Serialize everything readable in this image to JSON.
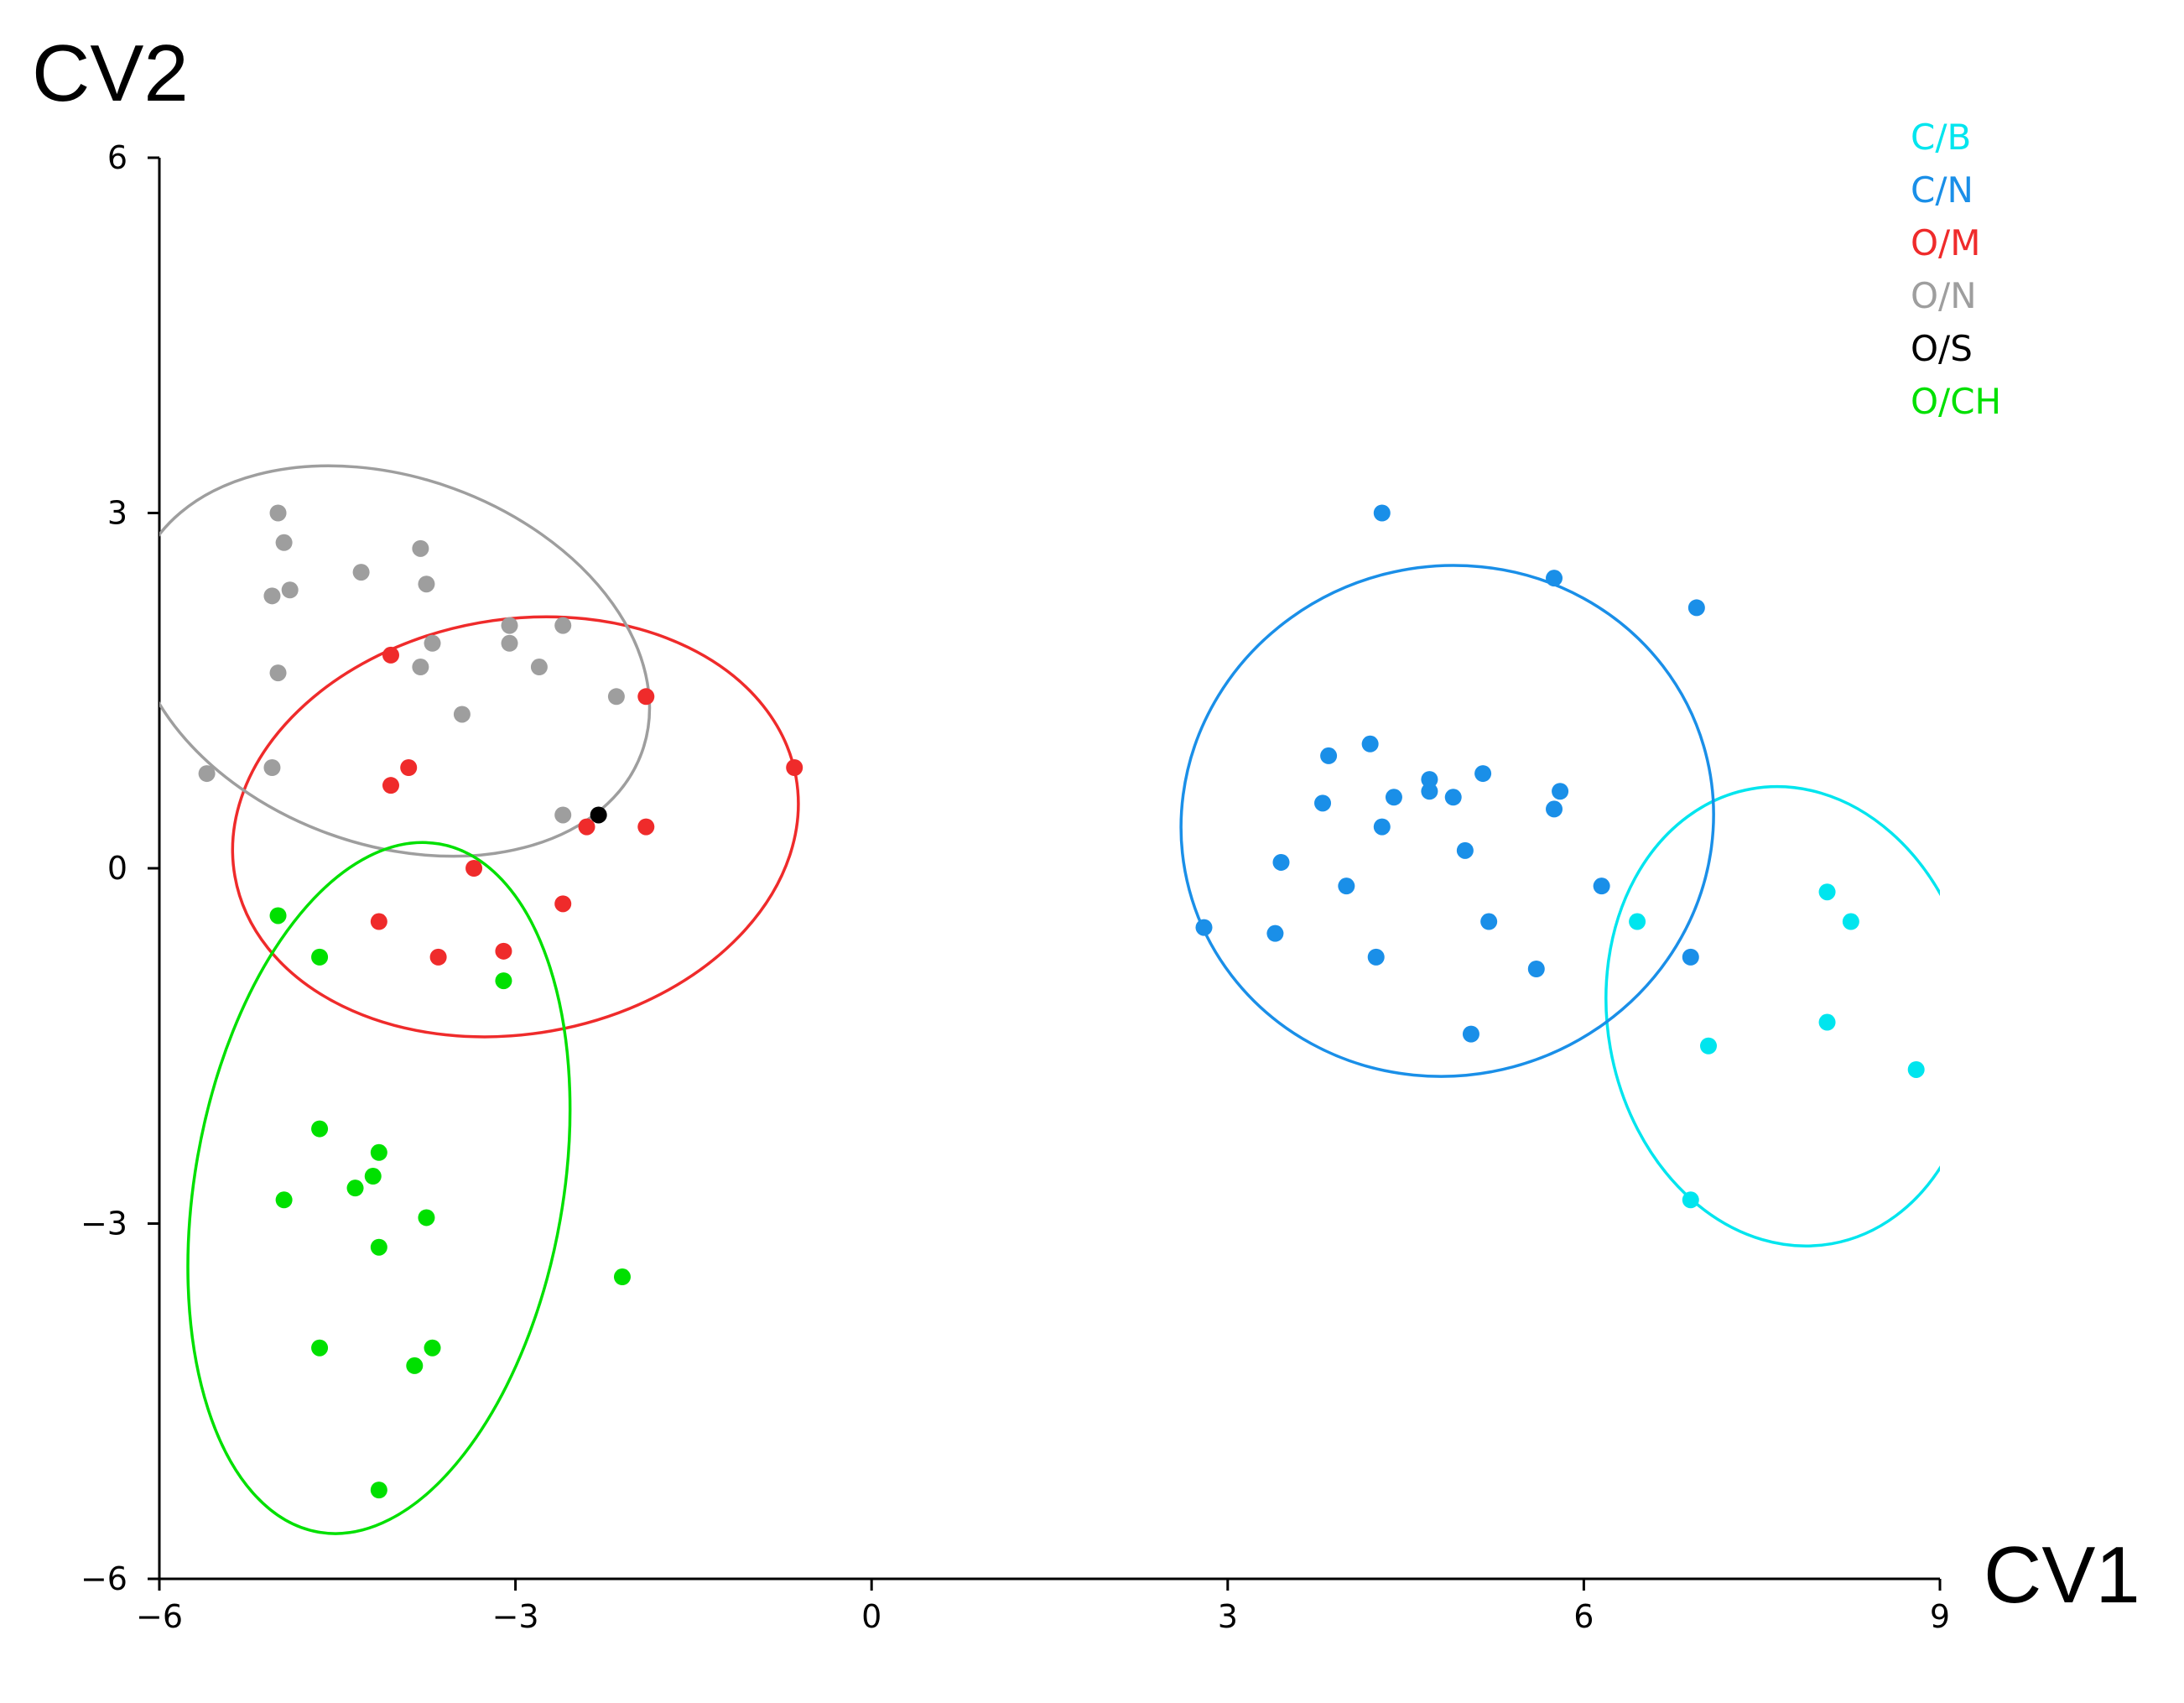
{
  "chart_data": {
    "type": "scatter",
    "xlabel": "CV1",
    "ylabel": "CV2",
    "xlim": [
      -6,
      9
    ],
    "ylim": [
      -6,
      6
    ],
    "xticks": [
      -6,
      -3,
      0,
      3,
      6,
      9
    ],
    "yticks": [
      -6,
      -3,
      0,
      3,
      6
    ],
    "xtick_labels": [
      "−6",
      "−3",
      "0",
      "3",
      "6",
      "9"
    ],
    "ytick_labels": [
      "−6",
      "−3",
      "0",
      "3",
      "6"
    ],
    "grid": false,
    "legend_position": "top-right",
    "series": [
      {
        "name": "C/B",
        "color": "#00e5ee",
        "points": [
          [
            6.45,
            -0.45
          ],
          [
            8.05,
            -0.2
          ],
          [
            8.25,
            -0.45
          ],
          [
            7.05,
            -1.5
          ],
          [
            8.05,
            -1.3
          ],
          [
            8.8,
            -1.7
          ],
          [
            6.9,
            -2.8
          ]
        ],
        "ellipse": {
          "cx": 7.75,
          "cy": -1.25,
          "rx": 1.55,
          "ry": 1.95,
          "angle": 10
        }
      },
      {
        "name": "C/N",
        "color": "#1a8fe8",
        "points": [
          [
            4.3,
            3.0
          ],
          [
            5.75,
            2.45
          ],
          [
            6.95,
            2.2
          ],
          [
            4.2,
            1.05
          ],
          [
            3.85,
            0.95
          ],
          [
            4.7,
            0.75
          ],
          [
            5.15,
            0.8
          ],
          [
            4.7,
            0.65
          ],
          [
            5.8,
            0.65
          ],
          [
            4.9,
            0.6
          ],
          [
            4.4,
            0.6
          ],
          [
            3.8,
            0.55
          ],
          [
            5.75,
            0.5
          ],
          [
            4.3,
            0.35
          ],
          [
            5.0,
            0.15
          ],
          [
            3.45,
            0.05
          ],
          [
            4.0,
            -0.15
          ],
          [
            6.15,
            -0.15
          ],
          [
            2.8,
            -0.5
          ],
          [
            3.4,
            -0.55
          ],
          [
            5.2,
            -0.45
          ],
          [
            4.25,
            -0.75
          ],
          [
            6.9,
            -0.75
          ],
          [
            5.6,
            -0.85
          ],
          [
            5.05,
            -1.4
          ]
        ],
        "ellipse": {
          "cx": 4.85,
          "cy": 0.4,
          "rx": 2.25,
          "ry": 2.15,
          "angle": 15
        }
      },
      {
        "name": "O/M",
        "color": "#ef2b2b",
        "points": [
          [
            -4.05,
            1.8
          ],
          [
            -1.9,
            1.45
          ],
          [
            -3.9,
            0.85
          ],
          [
            -0.65,
            0.85
          ],
          [
            -4.05,
            0.7
          ],
          [
            -2.4,
            0.35
          ],
          [
            -1.9,
            0.35
          ],
          [
            -3.35,
            0.0
          ],
          [
            -2.6,
            -0.3
          ],
          [
            -4.15,
            -0.45
          ],
          [
            -3.65,
            -0.75
          ],
          [
            -3.1,
            -0.7
          ]
        ],
        "ellipse": {
          "cx": -3.0,
          "cy": 0.35,
          "rx": 2.4,
          "ry": 1.75,
          "angle": 10
        }
      },
      {
        "name": "O/N",
        "color": "#9e9e9e",
        "points": [
          [
            -5.0,
            3.0
          ],
          [
            -4.95,
            2.75
          ],
          [
            -3.8,
            2.7
          ],
          [
            -4.3,
            2.5
          ],
          [
            -3.75,
            2.4
          ],
          [
            -4.9,
            2.35
          ],
          [
            -5.05,
            2.3
          ],
          [
            -3.05,
            2.05
          ],
          [
            -2.6,
            2.05
          ],
          [
            -3.7,
            1.9
          ],
          [
            -3.05,
            1.9
          ],
          [
            -3.8,
            1.7
          ],
          [
            -2.8,
            1.7
          ],
          [
            -5.0,
            1.65
          ],
          [
            -2.15,
            1.45
          ],
          [
            -3.45,
            1.3
          ],
          [
            -5.05,
            0.85
          ],
          [
            -5.6,
            0.8
          ],
          [
            -2.6,
            0.45
          ]
        ],
        "ellipse": {
          "cx": -4.05,
          "cy": 1.75,
          "rx": 2.25,
          "ry": 1.55,
          "angle": -20
        }
      },
      {
        "name": "O/S",
        "color": "#000000",
        "points": [
          [
            -2.3,
            0.45
          ]
        ]
      },
      {
        "name": "O/CH",
        "color": "#00e000",
        "points": [
          [
            -5.0,
            -0.4
          ],
          [
            -4.65,
            -0.75
          ],
          [
            -3.1,
            -0.95
          ],
          [
            -4.65,
            -2.2
          ],
          [
            -4.15,
            -2.4
          ],
          [
            -4.2,
            -2.6
          ],
          [
            -4.35,
            -2.7
          ],
          [
            -4.95,
            -2.8
          ],
          [
            -3.75,
            -2.95
          ],
          [
            -4.15,
            -3.2
          ],
          [
            -2.1,
            -3.45
          ],
          [
            -4.65,
            -4.05
          ],
          [
            -3.7,
            -4.05
          ],
          [
            -3.85,
            -4.2
          ],
          [
            -4.15,
            -5.25
          ]
        ],
        "ellipse": {
          "cx": -4.15,
          "cy": -2.7,
          "rx": 1.55,
          "ry": 2.95,
          "angle": -10
        }
      }
    ]
  }
}
